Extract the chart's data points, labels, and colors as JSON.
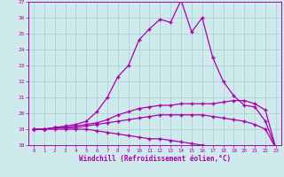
{
  "xlabel": "Windchill (Refroidissement éolien,°C)",
  "xlim": [
    -0.5,
    23.5
  ],
  "ylim": [
    18,
    27
  ],
  "yticks": [
    18,
    19,
    20,
    21,
    22,
    23,
    24,
    25,
    26,
    27
  ],
  "xticks": [
    0,
    1,
    2,
    3,
    4,
    5,
    6,
    7,
    8,
    9,
    10,
    11,
    12,
    13,
    14,
    15,
    16,
    17,
    18,
    19,
    20,
    21,
    22,
    23
  ],
  "bg_color": "#ceeaec",
  "grid_color": "#aacccc",
  "line_color": "#aa00aa",
  "series": {
    "upper": [
      19.0,
      19.0,
      19.1,
      19.2,
      19.3,
      19.5,
      20.1,
      21.0,
      22.3,
      23.0,
      24.6,
      25.3,
      25.9,
      25.7,
      27.1,
      25.1,
      26.0,
      23.5,
      22.0,
      21.1,
      20.5,
      20.4,
      19.5,
      17.8
    ],
    "mid_upper": [
      19.0,
      19.0,
      19.1,
      19.1,
      19.2,
      19.3,
      19.4,
      19.6,
      19.9,
      20.1,
      20.3,
      20.4,
      20.5,
      20.5,
      20.6,
      20.6,
      20.6,
      20.6,
      20.7,
      20.8,
      20.8,
      20.6,
      20.2,
      17.8
    ],
    "mid_lower": [
      19.0,
      19.0,
      19.1,
      19.1,
      19.1,
      19.2,
      19.3,
      19.4,
      19.5,
      19.6,
      19.7,
      19.8,
      19.9,
      19.9,
      19.9,
      19.9,
      19.9,
      19.8,
      19.7,
      19.6,
      19.5,
      19.3,
      19.0,
      17.8
    ],
    "lower": [
      19.0,
      19.0,
      19.0,
      19.0,
      19.0,
      19.0,
      18.9,
      18.8,
      18.7,
      18.6,
      18.5,
      18.4,
      18.4,
      18.3,
      18.2,
      18.1,
      18.0,
      17.9,
      17.9,
      17.8,
      17.8,
      17.8,
      17.8,
      17.8
    ]
  }
}
